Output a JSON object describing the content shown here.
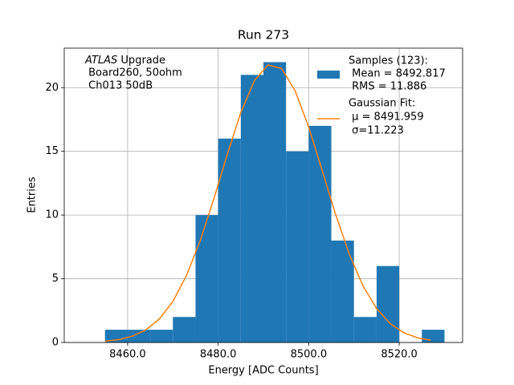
{
  "chart_data": {
    "type": "histogram",
    "title": "Run 273",
    "x_label": "Energy [ADC Counts]",
    "y_label": "Entries",
    "bins": [
      8455,
      8460,
      8465,
      8470,
      8475,
      8480,
      8485,
      8490,
      8495,
      8500,
      8505,
      8510,
      8515,
      8520,
      8525,
      8530
    ],
    "counts": [
      1,
      1,
      1,
      2,
      10,
      16,
      21,
      22,
      15,
      17,
      8,
      2,
      6,
      0,
      1
    ],
    "color": "#1f77b4",
    "hist_label": [
      "Samples (123):",
      " Mean = 8492.817",
      " RMS = 11.886"
    ],
    "series": [
      {
        "name": [
          "Gaussian Fit:",
          " μ = 8491.959",
          " σ=11.223"
        ],
        "color": "#ff7f0e",
        "x": [
          8455,
          8458,
          8461,
          8464,
          8467,
          8470,
          8473,
          8476,
          8479,
          8482,
          8485,
          8488,
          8491,
          8494,
          8497,
          8500,
          8503,
          8506,
          8509,
          8512,
          8515,
          8518,
          8521,
          8524,
          8527
        ],
        "values": [
          0.1,
          0.22,
          0.49,
          0.98,
          1.84,
          3.22,
          5.25,
          7.96,
          11.22,
          14.74,
          18.04,
          20.54,
          21.78,
          21.5,
          19.76,
          16.91,
          13.47,
          9.99,
          6.9,
          4.44,
          2.66,
          1.48,
          0.77,
          0.37,
          0.17
        ]
      }
    ],
    "annotation": {
      "experiment": "ATLAS",
      "text": "Upgrade",
      "lines": [
        " Board260, 50ohm",
        " Ch013 50dB"
      ]
    },
    "xlim": [
      8446,
      8534
    ],
    "ylim": [
      0,
      23.1
    ],
    "xticks": [
      {
        "value": 8460,
        "label": "8460.0"
      },
      {
        "value": 8480,
        "label": "8480.0"
      },
      {
        "value": 8500,
        "label": "8500.0"
      },
      {
        "value": 8520,
        "label": "8520.0"
      }
    ],
    "yticks": [
      0,
      5,
      10,
      15,
      20
    ],
    "grid": true,
    "legend": "upper right"
  }
}
